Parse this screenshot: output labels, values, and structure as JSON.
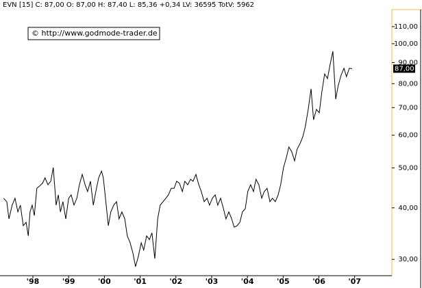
{
  "chart_data": {
    "type": "line",
    "title": "EVN [15] C: 87,00 O: 87,00 H: 87,40 L: 85,36 +0,34 LV: 36595 TotV: 5962",
    "annotation": "© http://www.godmode-trader.de",
    "last_price": {
      "value": 87,
      "label": "87,00"
    },
    "log_scale": true,
    "grid": false,
    "color": "#000000",
    "xlim": [
      1997.08,
      2008.04
    ],
    "ylim": [
      27.7,
      121
    ],
    "xticks": [
      {
        "value": 1998,
        "label": "'98"
      },
      {
        "value": 1999,
        "label": "'99"
      },
      {
        "value": 2000,
        "label": "'00"
      },
      {
        "value": 2001,
        "label": "'01"
      },
      {
        "value": 2002,
        "label": "'02"
      },
      {
        "value": 2003,
        "label": "'03"
      },
      {
        "value": 2004,
        "label": "'04"
      },
      {
        "value": 2005,
        "label": "'05"
      },
      {
        "value": 2006,
        "label": "'06"
      },
      {
        "value": 2007,
        "label": "'07"
      }
    ],
    "yticks": [
      {
        "value": 30,
        "label": "30,00"
      },
      {
        "value": 40,
        "label": "40,00"
      },
      {
        "value": 50,
        "label": "50,00"
      },
      {
        "value": 60,
        "label": "60,00"
      },
      {
        "value": 70,
        "label": "70,00"
      },
      {
        "value": 80,
        "label": "80,00"
      },
      {
        "value": 90,
        "label": "90,00"
      },
      {
        "value": 100,
        "label": "100,00"
      },
      {
        "value": 110,
        "label": "110,00"
      }
    ],
    "x": [
      1997.18,
      1997.27,
      1997.33,
      1997.42,
      1997.5,
      1997.58,
      1997.65,
      1997.73,
      1997.81,
      1997.87,
      1997.92,
      1997.98,
      1998.04,
      1998.11,
      1998.19,
      1998.27,
      1998.34,
      1998.42,
      1998.5,
      1998.57,
      1998.65,
      1998.71,
      1998.77,
      1998.84,
      1998.92,
      1999.0,
      1999.07,
      1999.15,
      1999.23,
      1999.3,
      1999.38,
      1999.46,
      1999.53,
      1999.61,
      1999.69,
      1999.76,
      1999.84,
      1999.92,
      1999.97,
      2000.03,
      2000.11,
      2000.18,
      2000.26,
      2000.34,
      2000.41,
      2000.49,
      2000.57,
      2000.64,
      2000.72,
      2000.8,
      2000.87,
      2000.95,
      2001.03,
      2001.1,
      2001.18,
      2001.26,
      2001.33,
      2001.41,
      2001.49,
      2001.56,
      2001.64,
      2001.72,
      2001.79,
      2001.87,
      2001.95,
      2002.02,
      2002.1,
      2002.18,
      2002.25,
      2002.33,
      2002.41,
      2002.48,
      2002.56,
      2002.64,
      2002.71,
      2002.79,
      2002.87,
      2002.94,
      2003.02,
      2003.1,
      2003.17,
      2003.25,
      2003.33,
      2003.4,
      2003.48,
      2003.56,
      2003.63,
      2003.71,
      2003.79,
      2003.86,
      2003.94,
      2004.01,
      2004.09,
      2004.17,
      2004.24,
      2004.32,
      2004.4,
      2004.47,
      2004.55,
      2004.63,
      2004.7,
      2004.78,
      2004.86,
      2004.93,
      2005.01,
      2005.09,
      2005.16,
      2005.24,
      2005.32,
      2005.39,
      2005.47,
      2005.55,
      2005.62,
      2005.7,
      2005.78,
      2005.85,
      2005.93,
      2006.01,
      2006.08,
      2006.16,
      2006.24,
      2006.31,
      2006.39,
      2006.47,
      2006.54,
      2006.62,
      2006.7,
      2006.77,
      2006.85,
      2006.93
    ],
    "values": [
      42.2,
      41.4,
      37.6,
      40.6,
      42.2,
      39.1,
      40.6,
      36.2,
      36.9,
      34.2,
      39.1,
      40.6,
      38.3,
      44.6,
      45.2,
      45.9,
      47.3,
      45.5,
      46.4,
      50.1,
      40.6,
      43.0,
      39.1,
      41.4,
      37.6,
      42.2,
      43.0,
      40.6,
      42.2,
      45.5,
      48.2,
      45.5,
      43.8,
      46.4,
      40.6,
      43.8,
      47.3,
      49.1,
      47.3,
      42.2,
      36.2,
      39.1,
      40.6,
      41.4,
      37.6,
      39.1,
      37.6,
      34.2,
      32.9,
      31.0,
      28.8,
      30.5,
      32.9,
      31.6,
      34.2,
      33.5,
      34.8,
      30.1,
      37.6,
      40.6,
      41.4,
      42.2,
      43.0,
      44.6,
      44.6,
      46.4,
      45.9,
      43.8,
      46.4,
      45.5,
      46.9,
      46.4,
      48.2,
      45.5,
      43.8,
      41.4,
      42.2,
      40.6,
      42.2,
      43.0,
      40.6,
      42.2,
      39.8,
      37.6,
      39.1,
      37.6,
      35.9,
      36.2,
      36.9,
      39.1,
      39.8,
      43.8,
      45.5,
      43.8,
      46.9,
      45.5,
      42.2,
      43.8,
      44.6,
      41.4,
      42.2,
      41.4,
      43.0,
      45.5,
      50.1,
      53.0,
      56.2,
      54.7,
      52.0,
      55.5,
      57.2,
      59.5,
      63.0,
      69.3,
      77.7,
      65.4,
      69.3,
      68.0,
      76.2,
      84.5,
      82.3,
      88.8,
      95.9,
      73.4,
      79.2,
      83.9,
      87.2,
      83.2,
      87.2,
      87.0
    ]
  }
}
